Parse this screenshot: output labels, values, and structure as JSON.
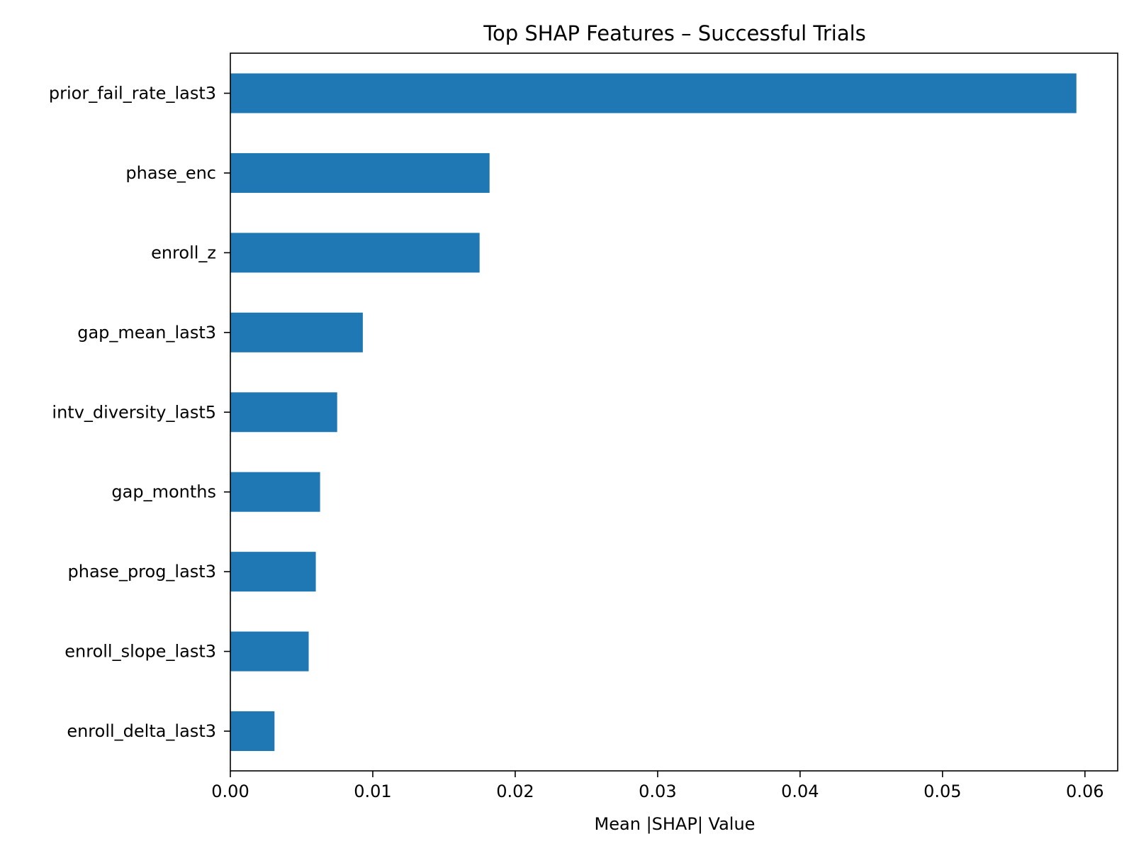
{
  "chart_data": {
    "type": "bar",
    "orientation": "horizontal",
    "title": "Top SHAP Features – Successful Trials",
    "xlabel": "Mean |SHAP| Value",
    "ylabel": "",
    "categories": [
      "prior_fail_rate_last3",
      "phase_enc",
      "enroll_z",
      "gap_mean_last3",
      "intv_diversity_last5",
      "gap_months",
      "phase_prog_last3",
      "enroll_slope_last3",
      "enroll_delta_last3"
    ],
    "values": [
      0.0594,
      0.0182,
      0.0175,
      0.0093,
      0.0075,
      0.0063,
      0.006,
      0.0055,
      0.0031
    ],
    "xlim": [
      0,
      0.0623
    ],
    "xticks": [
      0.0,
      0.01,
      0.02,
      0.03,
      0.04,
      0.05,
      0.06
    ],
    "xtick_labels": [
      "0.00",
      "0.01",
      "0.02",
      "0.03",
      "0.04",
      "0.05",
      "0.06"
    ],
    "bar_color": "#1f77b4",
    "grid": false,
    "legend": "none"
  }
}
